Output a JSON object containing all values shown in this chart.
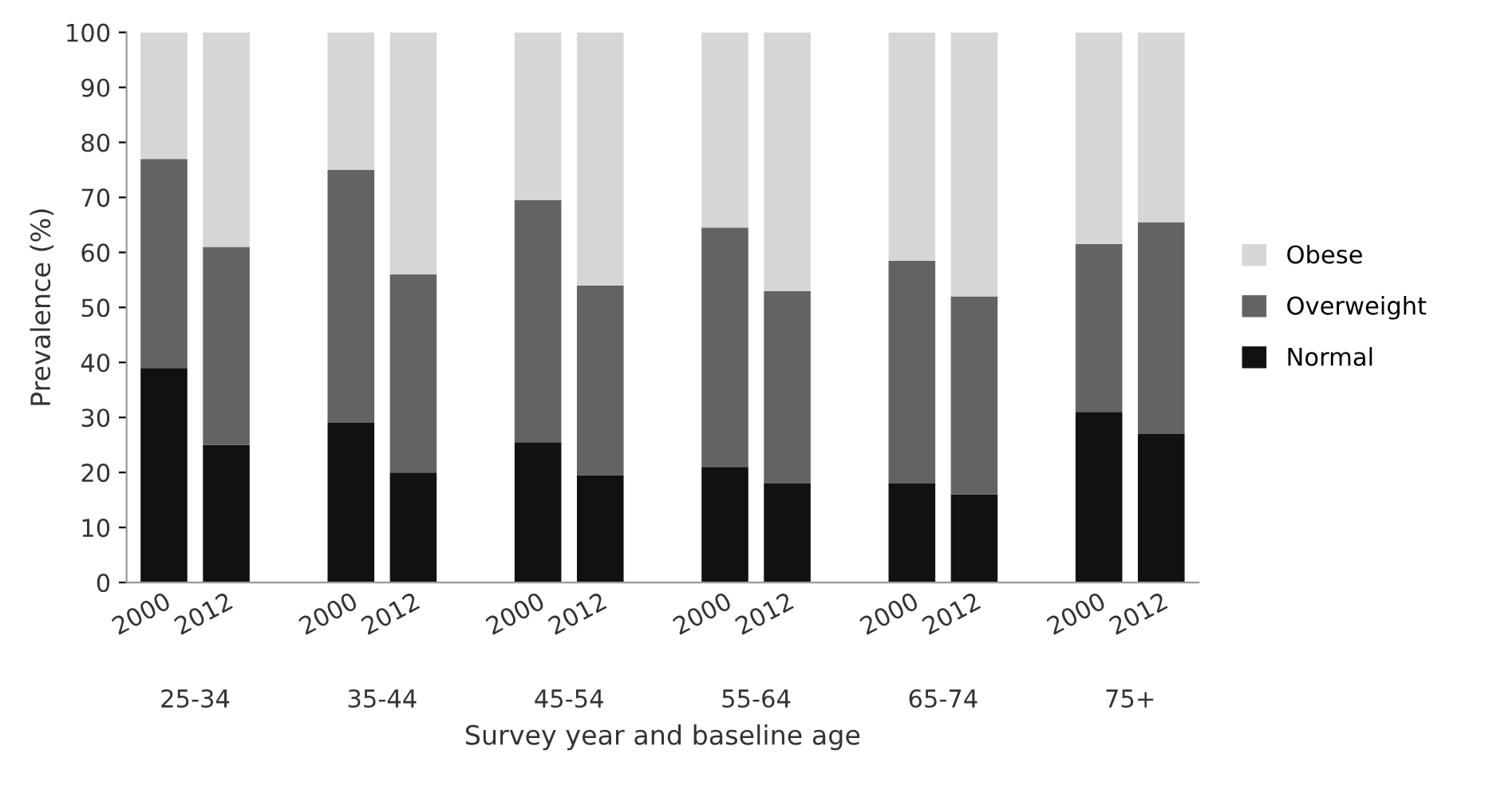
{
  "chart_data": {
    "type": "bar",
    "stacked": true,
    "ylabel": "Prevalence (%)",
    "xlabel": "Survey year and baseline age",
    "categories": [
      "2000",
      "2012",
      null,
      "2000",
      "2012",
      null,
      "2000",
      "2012",
      null,
      "2000",
      "2012",
      null,
      "2000",
      "2012",
      null,
      "2000",
      "2012"
    ],
    "series": [
      {
        "name": "Normal",
        "color": "#111111",
        "values": [
          39,
          25,
          null,
          29,
          20,
          null,
          25.5,
          19.5,
          null,
          21,
          18,
          null,
          18,
          16,
          null,
          31,
          27
        ]
      },
      {
        "name": "Overweight",
        "color": "#636363",
        "values": [
          38,
          36,
          null,
          46,
          36,
          null,
          44,
          34.5,
          null,
          43.5,
          35,
          null,
          40.5,
          36,
          null,
          30.5,
          38.5
        ]
      },
      {
        "name": "Obese",
        "color": "#d6d6d6",
        "values": [
          23,
          39,
          null,
          25,
          44,
          null,
          30.5,
          46,
          null,
          35.5,
          47,
          null,
          41.5,
          48,
          null,
          38.5,
          34.5
        ]
      }
    ],
    "annotations": [
      "25-34",
      "35-44",
      "45-54",
      "55-64",
      "65-74",
      "75+"
    ],
    "ylim": [
      0,
      100
    ],
    "yticks": [
      0,
      10,
      20,
      30,
      40,
      50,
      60,
      70,
      80,
      90,
      100
    ],
    "grid": false,
    "legend": "right"
  }
}
